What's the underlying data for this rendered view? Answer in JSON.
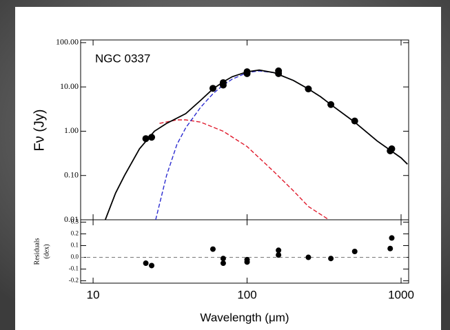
{
  "chart_data": [
    {
      "type": "scatter",
      "annotation": "NGC 0337",
      "ylabel": "Fν (Jy)",
      "xscale": "log",
      "yscale": "log",
      "xlim": [
        8.3,
        1120
      ],
      "ylim": [
        0.01,
        115
      ],
      "yticks": [
        {
          "value": 100,
          "label": "100.00"
        },
        {
          "value": 10,
          "label": "10.00"
        },
        {
          "value": 1,
          "label": "1.00"
        },
        {
          "value": 0.1,
          "label": "0.10"
        },
        {
          "value": 0.01,
          "label": "0.01"
        }
      ],
      "xticks": [
        10,
        100,
        1000
      ],
      "series": [
        {
          "style": "dashed",
          "color": "#e0192b",
          "x": [
            27,
            35,
            40,
            50,
            70,
            100,
            150,
            200,
            250,
            340
          ],
          "values": [
            1.5,
            1.8,
            1.8,
            1.6,
            1.0,
            0.45,
            0.12,
            0.045,
            0.02,
            0.01
          ]
        },
        {
          "style": "dashed",
          "color": "#2a2ad0",
          "x": [
            25.5,
            30,
            35,
            40,
            50,
            60,
            70,
            80,
            100,
            120,
            150,
            200,
            250,
            300,
            350,
            500,
            700,
            1000,
            1100
          ],
          "values": [
            0.01,
            0.1,
            0.5,
            1.2,
            3.5,
            7,
            11,
            15,
            21,
            23,
            21,
            14,
            9,
            6,
            4,
            1.6,
            0.6,
            0.25,
            0.18
          ]
        },
        {
          "style": "solid",
          "color": "#000000",
          "x": [
            12,
            14,
            16,
            20,
            25,
            30,
            40,
            50,
            60,
            70,
            80,
            100,
            120,
            150,
            200,
            250,
            300,
            350,
            500,
            700,
            1000,
            1100
          ],
          "values": [
            0.01,
            0.04,
            0.1,
            0.4,
            1.0,
            1.5,
            2.5,
            5,
            9,
            13,
            17,
            22,
            24,
            21,
            14,
            9,
            6,
            4,
            1.6,
            0.6,
            0.25,
            0.18
          ]
        },
        {
          "style": "points",
          "color": "#000000",
          "x": [
            22,
            24,
            60,
            70,
            70,
            100,
            100,
            160,
            160,
            250,
            350,
            500,
            850,
            870
          ],
          "values": [
            0.68,
            0.73,
            9.3,
            11.0,
            12.5,
            20,
            22,
            20,
            23,
            9.0,
            4.0,
            1.7,
            0.36,
            0.4
          ]
        }
      ]
    },
    {
      "type": "scatter",
      "xlabel": "Wavelength (μm)",
      "ylabel": [
        "Residuals",
        "(dex)"
      ],
      "xscale": "log",
      "xlim": [
        8.3,
        1120
      ],
      "ylim": [
        -0.22,
        0.32
      ],
      "xticks": [
        10,
        100,
        1000
      ],
      "yticks": [
        0.3,
        0.2,
        0.1,
        {
          "value": 0,
          "label": "0.0"
        },
        -0.1,
        -0.2
      ],
      "color": "#000000",
      "x": [
        22,
        24,
        60,
        70,
        70,
        100,
        100,
        160,
        160,
        250,
        350,
        500,
        850,
        870
      ],
      "values": [
        -0.05,
        -0.07,
        0.07,
        -0.01,
        -0.05,
        -0.02,
        -0.04,
        0.06,
        0.02,
        0.0,
        -0.01,
        0.05,
        0.075,
        0.165
      ]
    }
  ]
}
